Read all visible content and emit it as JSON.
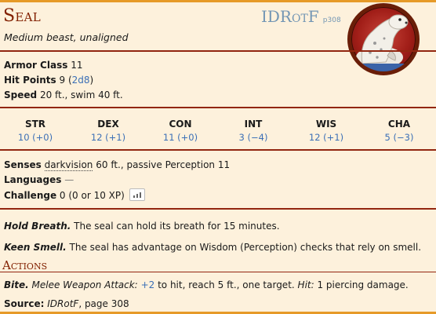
{
  "header": {
    "name": "Seal",
    "source_abbr": "IDRotF",
    "source_page": "p308",
    "subtitle": "Medium beast, unaligned"
  },
  "stats": {
    "ac_label": "Armor Class",
    "ac_value": "11",
    "hp_label": "Hit Points",
    "hp_value": "9",
    "hp_dice": "2d8",
    "speed_label": "Speed",
    "speed_value": "20 ft., swim 40 ft."
  },
  "abilities": [
    {
      "name": "STR",
      "score": "10 (+0)"
    },
    {
      "name": "DEX",
      "score": "12 (+1)"
    },
    {
      "name": "CON",
      "score": "11 (+0)"
    },
    {
      "name": "INT",
      "score": "3 (−4)"
    },
    {
      "name": "WIS",
      "score": "12 (+1)"
    },
    {
      "name": "CHA",
      "score": "5 (−3)"
    }
  ],
  "details": {
    "senses_label": "Senses",
    "senses_link": "darkvision",
    "senses_rest": "60 ft., passive Perception 11",
    "languages_label": "Languages",
    "languages_value": "—",
    "challenge_label": "Challenge",
    "challenge_value": "0 (0 or 10 XP)"
  },
  "traits": [
    {
      "name": "Hold Breath.",
      "text": "The seal can hold its breath for 15 minutes."
    },
    {
      "name": "Keen Smell.",
      "text": "The seal has advantage on Wisdom (Perception) checks that rely on smell."
    }
  ],
  "actions": {
    "heading": "Actions",
    "items": [
      {
        "name": "Bite.",
        "attack_type": "Melee Weapon Attack:",
        "to_hit": "+2",
        "text1": "to hit, reach 5 ft., one target.",
        "hit_label": "Hit:",
        "text2": "1 piercing damage."
      }
    ]
  },
  "footer": {
    "source_label": "Source:",
    "source_book": "IDRotF",
    "source_page": ", page 308"
  },
  "colors": {
    "accent": "#822000",
    "rule": "#922610",
    "link": "#3b6fb6",
    "border": "#e69a28",
    "background": "#fdf1dc"
  },
  "token_image": "seal-portrait"
}
